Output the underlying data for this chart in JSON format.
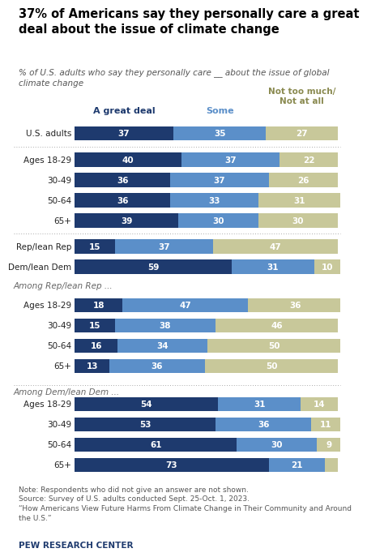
{
  "title": "37% of Americans say they personally care a great\ndeal about the issue of climate change",
  "subtitle": "% of U.S. adults who say they personally care __ about the issue of global\nclimate change",
  "colors": [
    "#1e3a6e",
    "#5b8fc9",
    "#c8c89a"
  ],
  "col_header_colors": [
    "#1e3a6e",
    "#5b8fc9",
    "#8a8a50"
  ],
  "col_headers": [
    "A great deal",
    "Some",
    "Not too much/\nNot at all"
  ],
  "labels": [
    "U.S. adults",
    "Ages 18-29",
    "30-49",
    "50-64",
    "65+",
    "Rep/lean Rep",
    "Dem/lean Dem",
    "Ages 18-29",
    "30-49",
    "50-64",
    "65+",
    "Ages 18-29",
    "30-49",
    "50-64",
    "65+"
  ],
  "indents": [
    0,
    1,
    1,
    1,
    1,
    0,
    0,
    1,
    1,
    1,
    1,
    1,
    1,
    1,
    1
  ],
  "values": [
    [
      37,
      35,
      27
    ],
    [
      40,
      37,
      22
    ],
    [
      36,
      37,
      26
    ],
    [
      36,
      33,
      31
    ],
    [
      39,
      30,
      30
    ],
    [
      15,
      37,
      47
    ],
    [
      59,
      31,
      10
    ],
    [
      18,
      47,
      36
    ],
    [
      15,
      38,
      46
    ],
    [
      16,
      34,
      50
    ],
    [
      13,
      36,
      50
    ],
    [
      54,
      31,
      14
    ],
    [
      53,
      36,
      11
    ],
    [
      61,
      30,
      9
    ],
    [
      73,
      21,
      5
    ]
  ],
  "section_texts": {
    "7": "Among Rep/lean Rep ...",
    "11": "Among Dem/lean Dem ..."
  },
  "note": "Note: Respondents who did not give an answer are not shown.\nSource: Survey of U.S. adults conducted Sept. 25-Oct. 1, 2023.\n“How Americans View Future Harms From Climate Change in Their Community and Around\nthe U.S.”",
  "footer": "PEW RESEARCH CENTER",
  "background_color": "#ffffff"
}
